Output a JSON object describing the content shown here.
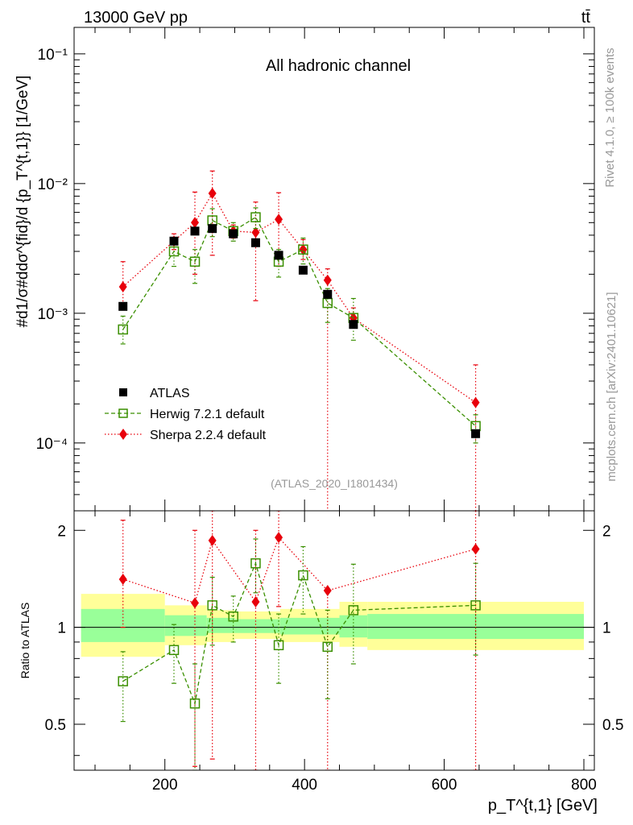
{
  "header": {
    "left": "13000 GeV pp",
    "right": "tt̄"
  },
  "side_labels": {
    "rivet": "Rivet 4.1.0, ≥ 100k events",
    "mcplots": "mcplots.cern.ch [arXiv:2401.10621]"
  },
  "chart_data": [
    {
      "type": "scatter",
      "title": "All hadronic channel",
      "analysis_id": "(ATLAS_2020_I1801434)",
      "ylabel": "#d1/σ#ddσ^{fid}/d {p_T^{t,1}} [1/GeV]",
      "yscale": "log",
      "ylim": [
        3e-05,
        0.16
      ],
      "xlim": [
        70,
        815
      ],
      "y_ticks": [
        0.0001,
        0.001,
        0.01,
        0.1
      ],
      "y_tick_labels": [
        "10⁻⁴",
        "10⁻³",
        "10⁻²",
        "10⁻¹"
      ],
      "legend": [
        "ATLAS",
        "Herwig 7.2.1 default",
        "Sherpa 2.2.4 default"
      ],
      "series": [
        {
          "name": "ATLAS",
          "color": "#000000",
          "x": [
            140,
            213,
            243,
            268,
            298,
            330,
            363,
            398,
            433,
            470,
            645
          ],
          "values": [
            0.00113,
            0.0036,
            0.0043,
            0.0045,
            0.0041,
            0.0035,
            0.0028,
            0.00215,
            0.0014,
            0.00082,
            0.000118
          ]
        },
        {
          "name": "Herwig 7.2.1 default",
          "color": "#3a8f00",
          "x": [
            140,
            213,
            243,
            268,
            298,
            330,
            363,
            398,
            433,
            470,
            645
          ],
          "values": [
            0.00075,
            0.003,
            0.0025,
            0.0052,
            0.0043,
            0.0055,
            0.0025,
            0.0031,
            0.0012,
            0.00092,
            0.000135
          ],
          "err_low": [
            0.00058,
            0.0023,
            0.0017,
            0.0039,
            0.0036,
            0.0045,
            0.0019,
            0.0024,
            0.00085,
            0.00062,
            0.0001
          ],
          "err_high": [
            0.00095,
            0.0036,
            0.0031,
            0.0064,
            0.005,
            0.0065,
            0.0031,
            0.0038,
            0.00155,
            0.0013,
            0.000165
          ]
        },
        {
          "name": "Sherpa 2.2.4 default",
          "color": "#e8000b",
          "x": [
            140,
            213,
            243,
            268,
            298,
            330,
            363,
            398,
            433,
            470,
            645
          ],
          "values": [
            0.0016,
            0.0036,
            0.005,
            0.0084,
            0.0043,
            0.0042,
            0.0053,
            0.0031,
            0.0018,
            0.00092,
            0.000205
          ],
          "err_low": [
            0.0011,
            0.0031,
            0.002,
            0.0028,
            0.0038,
            0.00125,
            0.0023,
            0.0026,
            2e-05,
            0.0008,
            2e-05
          ],
          "err_high": [
            0.0025,
            0.0041,
            0.0086,
            0.0125,
            0.0048,
            0.0072,
            0.0085,
            0.0037,
            0.0022,
            0.0011,
            0.0004
          ]
        }
      ]
    },
    {
      "type": "scatter",
      "ylabel": "Ratio to ATLAS",
      "xlabel": "p_T^{t,1} [GeV]",
      "xlim": [
        70,
        815
      ],
      "ylim": [
        0.36,
        2.3
      ],
      "yscale": "log",
      "x_ticks": [
        200,
        400,
        600,
        800
      ],
      "y_ticks": [
        0.5,
        1,
        2
      ],
      "y_tick_labels": [
        "0.5",
        "1",
        "2"
      ],
      "bands": [
        {
          "x0": 80,
          "x1": 200,
          "yellow": [
            0.81,
            1.27
          ],
          "green": [
            0.9,
            1.14
          ]
        },
        {
          "x0": 200,
          "x1": 260,
          "yellow": [
            0.88,
            1.17
          ],
          "green": [
            0.94,
            1.09
          ]
        },
        {
          "x0": 260,
          "x1": 300,
          "yellow": [
            0.9,
            1.13
          ],
          "green": [
            0.96,
            1.07
          ]
        },
        {
          "x0": 300,
          "x1": 365,
          "yellow": [
            0.92,
            1.12
          ],
          "green": [
            0.96,
            1.06
          ]
        },
        {
          "x0": 365,
          "x1": 450,
          "yellow": [
            0.9,
            1.14
          ],
          "green": [
            0.95,
            1.07
          ]
        },
        {
          "x0": 450,
          "x1": 490,
          "yellow": [
            0.87,
            1.2
          ],
          "green": [
            0.93,
            1.09
          ]
        },
        {
          "x0": 490,
          "x1": 800,
          "yellow": [
            0.85,
            1.2
          ],
          "green": [
            0.92,
            1.1
          ]
        }
      ],
      "series": [
        {
          "name": "Herwig 7.2.1 default",
          "x": [
            140,
            213,
            243,
            268,
            298,
            330,
            363,
            398,
            433,
            470,
            645
          ],
          "values": [
            0.68,
            0.85,
            0.58,
            1.17,
            1.08,
            1.58,
            0.88,
            1.45,
            0.87,
            1.13,
            1.17
          ],
          "err_low": [
            0.51,
            0.67,
            0.36,
            0.88,
            0.9,
            1.28,
            0.67,
            1.1,
            0.6,
            0.77,
            0.82
          ],
          "err_high": [
            0.84,
            1.02,
            0.77,
            1.43,
            1.25,
            1.88,
            1.1,
            1.78,
            1.13,
            1.57,
            1.58
          ]
        },
        {
          "name": "Sherpa 2.2.4 default",
          "x": [
            140,
            213,
            243,
            268,
            298,
            330,
            363,
            398,
            433,
            470,
            645
          ],
          "values": [
            1.41,
            null,
            1.19,
            1.86,
            null,
            1.2,
            1.9,
            null,
            1.3,
            null,
            1.75
          ],
          "err_low": [
            1.0,
            null,
            0.37,
            0.39,
            null,
            0.36,
            1.16,
            null,
            0.36,
            null,
            0.36
          ],
          "err_high": [
            2.15,
            null,
            2.0,
            2.3,
            null,
            2.0,
            2.3,
            null,
            1.3,
            null,
            2.3
          ]
        }
      ]
    }
  ]
}
